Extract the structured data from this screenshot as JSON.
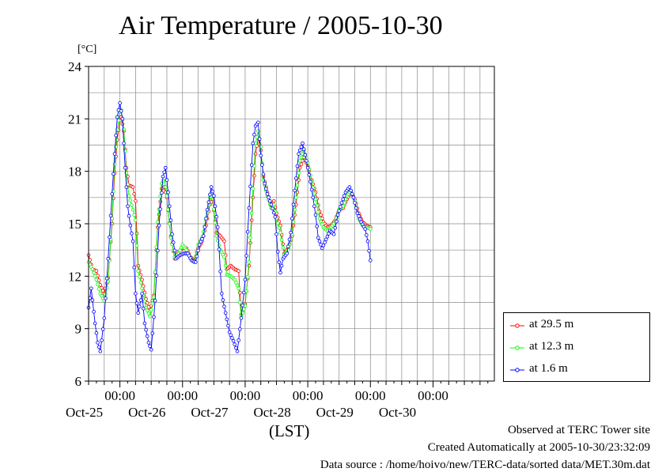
{
  "chart_data": {
    "type": "line",
    "title": "Air Temperature / 2005-10-30",
    "ylabel": "[°C]",
    "xlabel": "(LST)",
    "ylim": [
      6,
      24
    ],
    "yticks": [
      6,
      9,
      12,
      15,
      18,
      21,
      24
    ],
    "xlim": [
      "2005-10-24 12:00",
      "2005-10-30 23:30"
    ],
    "xticks": [
      {
        "time": "2005-10-25 00:00",
        "label": "00:00",
        "date": "Oct-25"
      },
      {
        "time": "2005-10-26 00:00",
        "label": "00:00",
        "date": "Oct-26"
      },
      {
        "time": "2005-10-27 00:00",
        "label": "00:00",
        "date": "Oct-27"
      },
      {
        "time": "2005-10-28 00:00",
        "label": "00:00",
        "date": "Oct-28"
      },
      {
        "time": "2005-10-29 00:00",
        "label": "00:00",
        "date": "Oct-29"
      },
      {
        "time": "2005-10-30 00:00",
        "label": "00:00",
        "date": "Oct-30"
      }
    ],
    "grid": true,
    "legend_position": "bottom-right, outside plot",
    "series": [
      {
        "name": "at 29.5 m",
        "color": "#ff0000",
        "points": [
          [
            "10-24 12:00",
            13.2
          ],
          [
            "10-24 13:30",
            12.4
          ],
          [
            "10-24 15:00",
            12.3
          ],
          [
            "10-24 16:30",
            11.5
          ],
          [
            "10-24 18:00",
            11.0
          ],
          [
            "10-24 19:30",
            11.9
          ],
          [
            "10-24 21:00",
            15.0
          ],
          [
            "10-24 22:00",
            17.9
          ],
          [
            "10-24 23:00",
            19.8
          ],
          [
            "10-25 00:00",
            20.9
          ],
          [
            "10-25 00:30",
            21.1
          ],
          [
            "10-25 01:30",
            20.3
          ],
          [
            "10-25 02:30",
            18.2
          ],
          [
            "10-25 03:30",
            17.2
          ],
          [
            "10-25 05:00",
            17.1
          ],
          [
            "10-25 06:00",
            16.3
          ],
          [
            "10-25 07:00",
            12.6
          ],
          [
            "10-25 08:30",
            11.8
          ],
          [
            "10-25 10:00",
            10.7
          ],
          [
            "10-25 11:30",
            10.0
          ],
          [
            "10-25 13:00",
            10.9
          ],
          [
            "10-25 14:30",
            14.8
          ],
          [
            "10-25 16:00",
            17.0
          ],
          [
            "10-25 17:00",
            17.1
          ],
          [
            "10-25 18:00",
            16.5
          ],
          [
            "10-25 19:30",
            14.3
          ],
          [
            "10-25 21:00",
            13.0
          ],
          [
            "10-25 22:30",
            13.4
          ],
          [
            "10-26 00:00",
            13.6
          ],
          [
            "10-26 01:30",
            13.6
          ],
          [
            "10-26 03:00",
            13.1
          ],
          [
            "10-26 04:30",
            12.9
          ],
          [
            "10-26 06:00",
            13.6
          ],
          [
            "10-26 07:30",
            14.0
          ],
          [
            "10-26 09:00",
            14.9
          ],
          [
            "10-26 10:30",
            16.1
          ],
          [
            "10-26 11:30",
            16.4
          ],
          [
            "10-26 13:00",
            14.5
          ],
          [
            "10-26 14:30",
            14.3
          ],
          [
            "10-26 16:00",
            14.0
          ],
          [
            "10-26 17:00",
            12.4
          ],
          [
            "10-26 18:30",
            12.6
          ],
          [
            "10-26 20:00",
            12.4
          ],
          [
            "10-26 21:30",
            12.3
          ],
          [
            "10-26 22:30",
            9.8
          ],
          [
            "10-27 00:00",
            10.4
          ],
          [
            "10-27 01:30",
            12.6
          ],
          [
            "10-27 03:00",
            16.5
          ],
          [
            "10-27 04:00",
            19.0
          ],
          [
            "10-27 05:00",
            19.9
          ],
          [
            "10-27 06:00",
            19.2
          ],
          [
            "10-27 07:00",
            17.7
          ],
          [
            "10-27 08:30",
            16.8
          ],
          [
            "10-27 10:00",
            16.0
          ],
          [
            "10-27 11:00",
            16.3
          ],
          [
            "10-27 12:00",
            15.6
          ],
          [
            "10-27 13:30",
            14.9
          ],
          [
            "10-27 15:00",
            13.3
          ],
          [
            "10-27 16:30",
            13.6
          ],
          [
            "10-27 18:00",
            14.3
          ],
          [
            "10-27 19:30",
            16.1
          ],
          [
            "10-27 21:00",
            18.2
          ],
          [
            "10-27 22:30",
            18.8
          ],
          [
            "10-28 00:00",
            18.3
          ],
          [
            "10-28 01:30",
            17.5
          ],
          [
            "10-28 03:00",
            16.8
          ],
          [
            "10-28 04:30",
            15.7
          ],
          [
            "10-28 06:00",
            15.1
          ],
          [
            "10-28 07:30",
            14.8
          ],
          [
            "10-28 09:00",
            14.9
          ],
          [
            "10-28 10:30",
            15.2
          ],
          [
            "10-28 12:00",
            15.8
          ],
          [
            "10-28 13:30",
            15.9
          ],
          [
            "10-28 15:00",
            16.4
          ],
          [
            "10-28 16:30",
            16.8
          ],
          [
            "10-28 18:00",
            16.4
          ],
          [
            "10-28 19:30",
            15.6
          ],
          [
            "10-28 21:00",
            15.1
          ],
          [
            "10-28 22:30",
            14.9
          ],
          [
            "10-29 00:00",
            14.8
          ]
        ]
      },
      {
        "name": "at 12.3 m",
        "color": "#00ff00",
        "points": [
          [
            "10-24 12:00",
            12.8
          ],
          [
            "10-24 13:30",
            12.4
          ],
          [
            "10-24 15:00",
            11.8
          ],
          [
            "10-24 16:30",
            11.0
          ],
          [
            "10-24 18:00",
            10.6
          ],
          [
            "10-24 19:30",
            11.7
          ],
          [
            "10-24 21:00",
            15.3
          ],
          [
            "10-24 22:00",
            18.4
          ],
          [
            "10-24 23:00",
            20.4
          ],
          [
            "10-25 00:00",
            21.4
          ],
          [
            "10-25 00:30",
            21.5
          ],
          [
            "10-25 01:30",
            20.4
          ],
          [
            "10-25 02:30",
            17.9
          ],
          [
            "10-25 03:30",
            16.6
          ],
          [
            "10-25 05:00",
            15.8
          ],
          [
            "10-25 06:00",
            15.2
          ],
          [
            "10-25 07:00",
            12.3
          ],
          [
            "10-25 08:30",
            11.3
          ],
          [
            "10-25 10:00",
            10.2
          ],
          [
            "10-25 11:30",
            9.7
          ],
          [
            "10-25 13:00",
            10.8
          ],
          [
            "10-25 14:30",
            15.1
          ],
          [
            "10-25 16:00",
            17.3
          ],
          [
            "10-25 17:00",
            17.6
          ],
          [
            "10-25 18:00",
            16.6
          ],
          [
            "10-25 19:30",
            14.2
          ],
          [
            "10-25 21:00",
            13.1
          ],
          [
            "10-25 22:30",
            13.3
          ],
          [
            "10-26 00:00",
            13.8
          ],
          [
            "10-26 01:30",
            13.5
          ],
          [
            "10-26 03:00",
            13.0
          ],
          [
            "10-26 04:30",
            12.8
          ],
          [
            "10-26 06:00",
            13.8
          ],
          [
            "10-26 07:30",
            14.2
          ],
          [
            "10-26 09:00",
            15.2
          ],
          [
            "10-26 10:30",
            16.5
          ],
          [
            "10-26 11:30",
            16.6
          ],
          [
            "10-26 13:00",
            14.3
          ],
          [
            "10-26 14:30",
            13.5
          ],
          [
            "10-26 16:00",
            13.1
          ],
          [
            "10-26 17:00",
            12.1
          ],
          [
            "10-26 18:30",
            12.0
          ],
          [
            "10-26 20:00",
            11.8
          ],
          [
            "10-26 21:30",
            11.3
          ],
          [
            "10-26 22:30",
            9.7
          ],
          [
            "10-27 00:00",
            10.3
          ],
          [
            "10-27 01:30",
            12.8
          ],
          [
            "10-27 03:00",
            17.0
          ],
          [
            "10-27 04:00",
            19.6
          ],
          [
            "10-27 05:00",
            20.3
          ],
          [
            "10-27 06:00",
            19.4
          ],
          [
            "10-27 07:00",
            17.5
          ],
          [
            "10-27 08:30",
            16.6
          ],
          [
            "10-27 10:00",
            15.9
          ],
          [
            "10-27 11:00",
            16.1
          ],
          [
            "10-27 12:00",
            15.3
          ],
          [
            "10-27 13:30",
            14.5
          ],
          [
            "10-27 15:00",
            13.2
          ],
          [
            "10-27 16:30",
            13.5
          ],
          [
            "10-27 18:00",
            14.4
          ],
          [
            "10-27 19:30",
            16.5
          ],
          [
            "10-27 21:00",
            18.6
          ],
          [
            "10-27 22:30",
            19.2
          ],
          [
            "10-28 00:00",
            18.5
          ],
          [
            "10-28 01:30",
            17.4
          ],
          [
            "10-28 03:00",
            16.4
          ],
          [
            "10-28 04:30",
            15.3
          ],
          [
            "10-28 06:00",
            14.8
          ],
          [
            "10-28 07:30",
            14.6
          ],
          [
            "10-28 09:00",
            14.8
          ],
          [
            "10-28 10:30",
            15.1
          ],
          [
            "10-28 12:00",
            15.8
          ],
          [
            "10-28 13:30",
            16.0
          ],
          [
            "10-28 15:00",
            16.6
          ],
          [
            "10-28 16:30",
            16.9
          ],
          [
            "10-28 18:00",
            16.3
          ],
          [
            "10-28 19:30",
            15.3
          ],
          [
            "10-28 21:00",
            14.9
          ],
          [
            "10-28 22:30",
            14.8
          ],
          [
            "10-29 00:00",
            14.7
          ]
        ]
      },
      {
        "name": "at 1.6 m",
        "color": "#0000ff",
        "points": [
          [
            "10-24 12:00",
            10.2
          ],
          [
            "10-24 13:00",
            11.3
          ],
          [
            "10-24 14:30",
            9.3
          ],
          [
            "10-24 15:30",
            8.2
          ],
          [
            "10-24 16:30",
            7.7
          ],
          [
            "10-24 18:00",
            9.6
          ],
          [
            "10-24 19:30",
            13.0
          ],
          [
            "10-24 21:00",
            16.7
          ],
          [
            "10-24 22:00",
            19.0
          ],
          [
            "10-24 23:00",
            21.1
          ],
          [
            "10-25 00:00",
            21.9
          ],
          [
            "10-25 01:00",
            21.0
          ],
          [
            "10-25 02:00",
            18.2
          ],
          [
            "10-25 03:00",
            16.0
          ],
          [
            "10-25 04:00",
            14.9
          ],
          [
            "10-25 05:00",
            14.0
          ],
          [
            "10-25 06:00",
            11.0
          ],
          [
            "10-25 07:00",
            9.9
          ],
          [
            "10-25 08:30",
            11.0
          ],
          [
            "10-25 09:30",
            9.3
          ],
          [
            "10-25 11:00",
            8.2
          ],
          [
            "10-25 12:00",
            7.8
          ],
          [
            "10-25 13:30",
            10.6
          ],
          [
            "10-25 15:00",
            14.9
          ],
          [
            "10-25 16:30",
            17.7
          ],
          [
            "10-25 17:30",
            18.2
          ],
          [
            "10-25 18:30",
            16.8
          ],
          [
            "10-25 20:00",
            14.4
          ],
          [
            "10-25 21:30",
            13.0
          ],
          [
            "10-25 23:00",
            13.2
          ],
          [
            "10-26 00:30",
            13.3
          ],
          [
            "10-26 02:00",
            13.3
          ],
          [
            "10-26 03:30",
            12.9
          ],
          [
            "10-26 05:00",
            12.8
          ],
          [
            "10-26 06:30",
            13.8
          ],
          [
            "10-26 08:00",
            14.3
          ],
          [
            "10-26 09:30",
            15.8
          ],
          [
            "10-26 11:00",
            17.1
          ],
          [
            "10-26 12:00",
            16.6
          ],
          [
            "10-26 13:30",
            14.8
          ],
          [
            "10-26 15:00",
            11.0
          ],
          [
            "10-26 16:30",
            9.9
          ],
          [
            "10-26 18:00",
            8.8
          ],
          [
            "10-26 19:30",
            8.3
          ],
          [
            "10-26 21:00",
            7.7
          ],
          [
            "10-26 22:30",
            9.6
          ],
          [
            "10-27 00:00",
            11.8
          ],
          [
            "10-27 01:30",
            15.9
          ],
          [
            "10-27 03:00",
            19.6
          ],
          [
            "10-27 04:00",
            20.6
          ],
          [
            "10-27 05:00",
            20.8
          ],
          [
            "10-27 06:00",
            18.9
          ],
          [
            "10-27 07:30",
            17.3
          ],
          [
            "10-27 08:30",
            16.7
          ],
          [
            "10-27 10:00",
            16.1
          ],
          [
            "10-27 11:30",
            15.4
          ],
          [
            "10-27 12:30",
            13.4
          ],
          [
            "10-27 13:30",
            12.2
          ],
          [
            "10-27 14:30",
            13.0
          ],
          [
            "10-27 16:00",
            13.3
          ],
          [
            "10-27 17:30",
            14.5
          ],
          [
            "10-27 19:00",
            16.9
          ],
          [
            "10-27 20:30",
            19.0
          ],
          [
            "10-27 22:00",
            19.6
          ],
          [
            "10-27 23:30",
            18.6
          ],
          [
            "10-28 01:00",
            17.4
          ],
          [
            "10-28 02:00",
            16.5
          ],
          [
            "10-28 03:00",
            15.5
          ],
          [
            "10-28 04:00",
            14.2
          ],
          [
            "10-28 05:30",
            13.6
          ],
          [
            "10-28 07:00",
            14.1
          ],
          [
            "10-28 08:30",
            14.6
          ],
          [
            "10-28 10:00",
            14.4
          ],
          [
            "10-28 11:30",
            15.5
          ],
          [
            "10-28 13:00",
            16.2
          ],
          [
            "10-28 14:30",
            16.8
          ],
          [
            "10-28 16:00",
            17.1
          ],
          [
            "10-28 17:30",
            16.5
          ],
          [
            "10-28 19:00",
            15.6
          ],
          [
            "10-28 20:30",
            15.1
          ],
          [
            "10-28 22:00",
            14.7
          ],
          [
            "10-28 23:00",
            14.0
          ],
          [
            "10-29 00:00",
            12.9
          ]
        ]
      }
    ]
  },
  "footer": {
    "line1": "Observed at TERC Tower site",
    "line2": "Created Automatically at 2005-10-30/23:32:09",
    "line3": "Data source : /home/hoivo/new/TERC-data/sorted  data/MET.30m.dat"
  }
}
